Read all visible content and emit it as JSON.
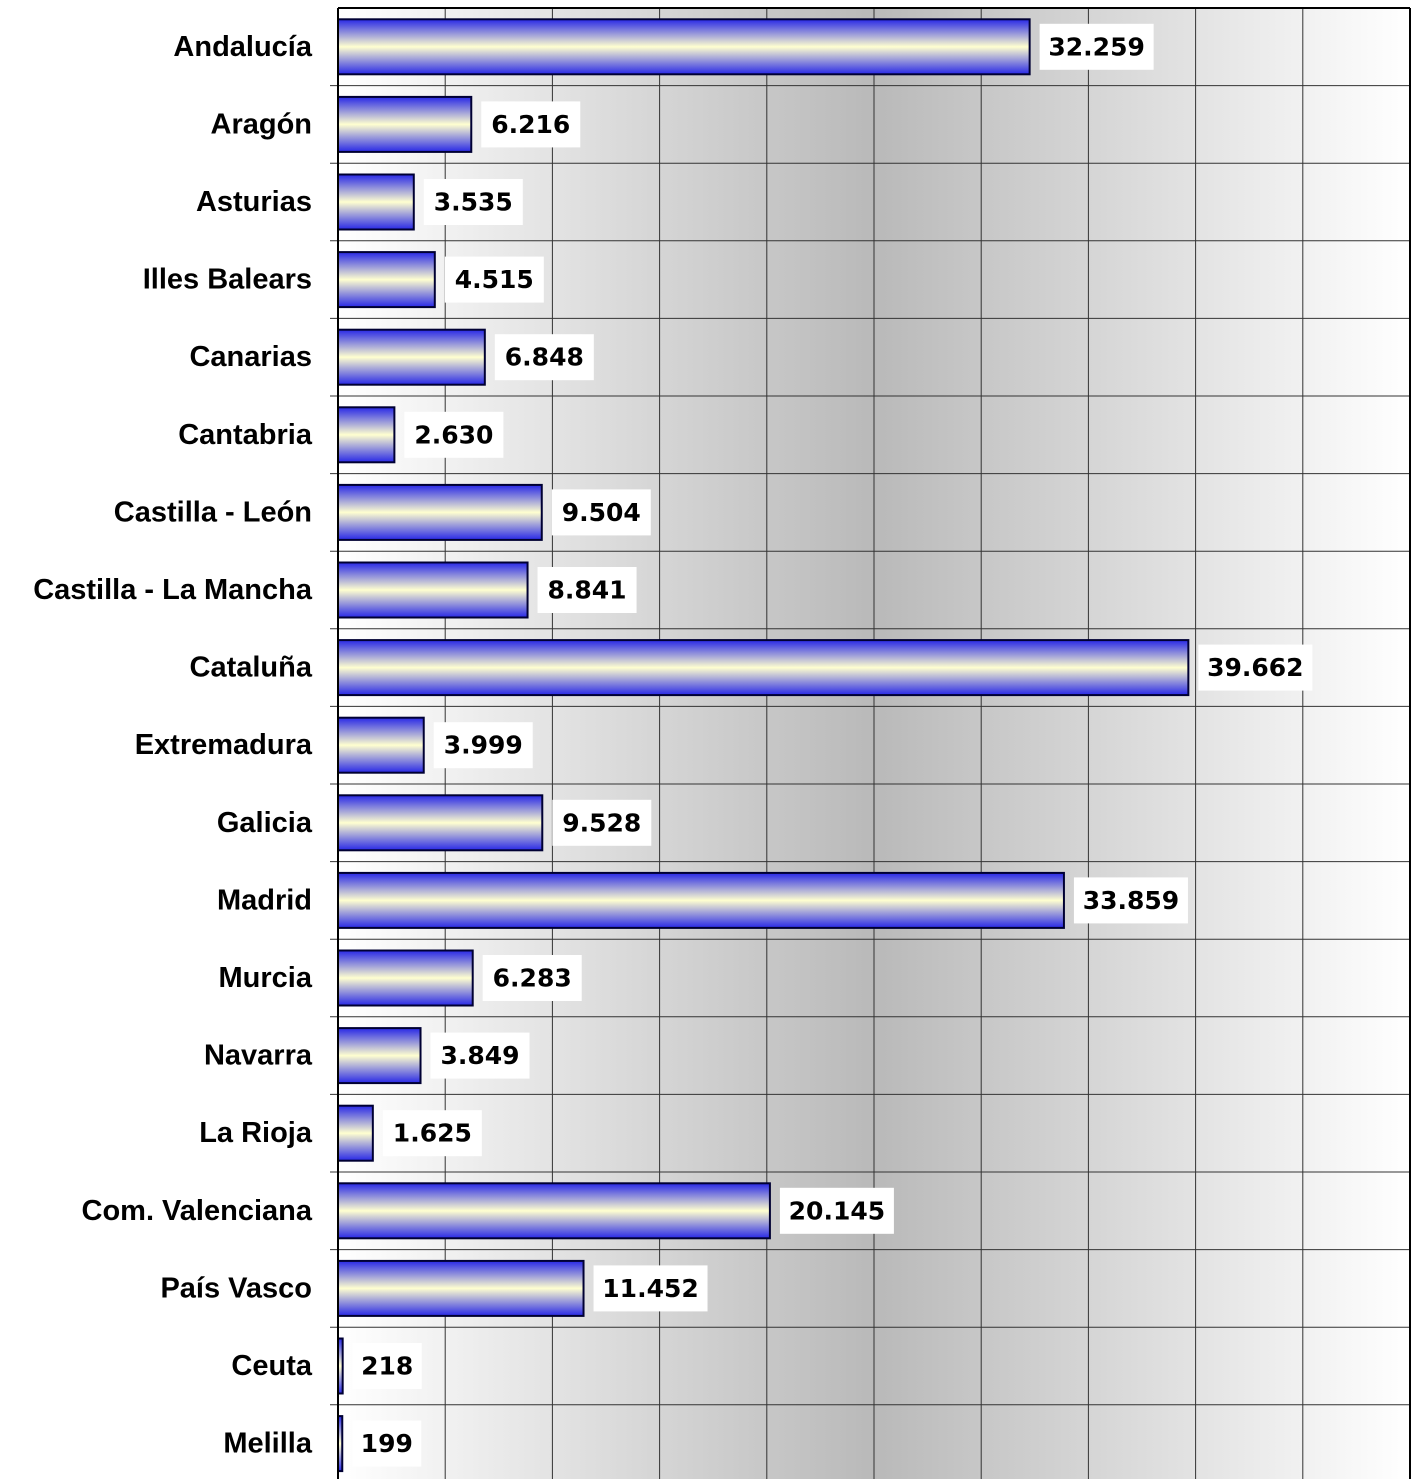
{
  "chart_data": {
    "type": "bar",
    "orientation": "horizontal",
    "categories": [
      "Andalucía",
      "Aragón",
      "Asturias",
      "Illes Balears",
      "Canarias",
      "Cantabria",
      "Castilla - León",
      "Castilla - La Mancha",
      "Cataluña",
      "Extremadura",
      "Galicia",
      "Madrid",
      "Murcia",
      "Navarra",
      "La Rioja",
      "Com. Valenciana",
      "País Vasco",
      "Ceuta",
      "Melilla"
    ],
    "values": [
      32259,
      6216,
      3535,
      4515,
      6848,
      2630,
      9504,
      8841,
      39662,
      3999,
      9528,
      33859,
      6283,
      3849,
      1625,
      20145,
      11452,
      218,
      199
    ],
    "value_labels": [
      "32.259",
      "6.216",
      "3.535",
      "4.515",
      "6.848",
      "2.630",
      "9.504",
      "8.841",
      "39.662",
      "3.999",
      "9.528",
      "33.859",
      "6.283",
      "3.849",
      "1.625",
      "20.145",
      "11.452",
      "218",
      "199"
    ],
    "xlim": [
      0,
      50000
    ],
    "x_gridline_step": 5000,
    "grid": true,
    "legend": "none",
    "colors": {
      "bar_edge": "#2828e6",
      "bar_center": "#ffffd0",
      "bar_outline": "#000033",
      "plot_bg_light": "#ffffff",
      "plot_bg_dark": "#b9b9b9",
      "label_box": "#ffffff"
    }
  }
}
